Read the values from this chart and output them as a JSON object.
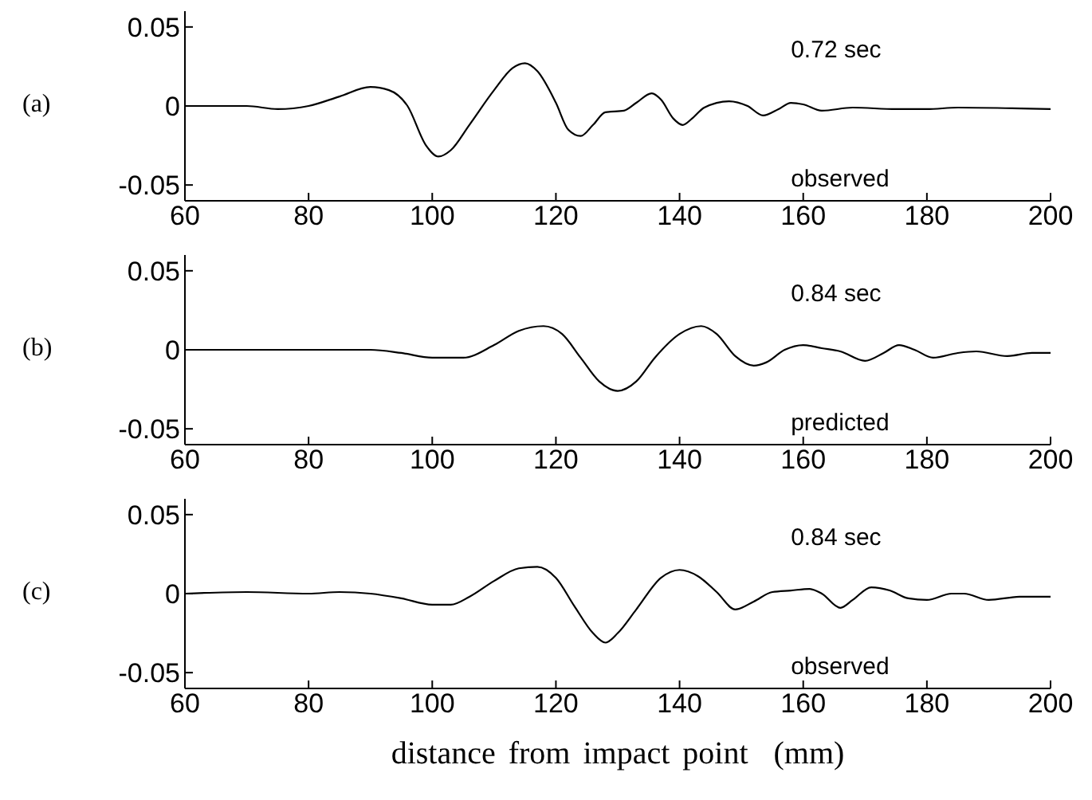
{
  "chart_data": [
    {
      "type": "line",
      "annotations": [
        "(a)",
        "0.72 sec",
        "observed"
      ],
      "x": [
        60,
        70,
        75,
        80,
        85,
        90,
        93,
        96,
        99,
        101,
        103,
        106,
        110,
        113,
        115,
        117,
        120,
        122,
        124,
        126,
        128,
        131,
        133,
        135.5,
        137,
        139,
        140.5,
        142,
        144,
        148,
        151,
        153.5,
        156,
        158,
        160,
        163,
        168,
        175,
        180,
        185,
        200
      ],
      "series": [
        {
          "color": "#000000",
          "values": [
            0,
            0,
            -0.002,
            0,
            0.006,
            0.012,
            0.01,
            0,
            -0.025,
            -0.032,
            -0.028,
            -0.012,
            0.01,
            0.024,
            0.027,
            0.022,
            0.002,
            -0.015,
            -0.019,
            -0.012,
            -0.004,
            -0.003,
            0.002,
            0.008,
            0.004,
            -0.008,
            -0.012,
            -0.008,
            -0.001,
            0.003,
            0,
            -0.006,
            -0.002,
            0.002,
            0.001,
            -0.003,
            -0.001,
            -0.002,
            -0.002,
            -0.001,
            -0.002
          ]
        }
      ],
      "xlim": [
        60,
        200
      ],
      "xticks": [
        60,
        80,
        100,
        120,
        140,
        160,
        180,
        200
      ],
      "ylim": [
        -0.06,
        0.06
      ],
      "yticks": [
        -0.05,
        0,
        0.05
      ],
      "grid": false,
      "legend": false,
      "marker": "none",
      "line_style": "solid"
    },
    {
      "type": "line",
      "annotations": [
        "(b)",
        "0.84 sec",
        "predicted"
      ],
      "x": [
        60,
        90,
        95,
        100,
        105,
        110,
        114,
        118,
        121,
        124,
        127,
        130,
        133,
        136,
        140,
        143.5,
        146,
        149,
        152,
        154,
        157,
        160,
        163,
        166,
        170,
        173,
        175.5,
        178,
        181,
        185,
        188,
        193,
        197,
        200
      ],
      "series": [
        {
          "color": "#000000",
          "values": [
            0,
            0,
            -0.002,
            -0.005,
            -0.005,
            0.003,
            0.012,
            0.015,
            0.01,
            -0.005,
            -0.02,
            -0.026,
            -0.02,
            -0.005,
            0.01,
            0.015,
            0.01,
            -0.004,
            -0.01,
            -0.008,
            0,
            0.003,
            0.001,
            -0.001,
            -0.007,
            -0.002,
            0.003,
            0,
            -0.005,
            -0.002,
            -0.001,
            -0.004,
            -0.002,
            -0.002
          ]
        }
      ],
      "xlim": [
        60,
        200
      ],
      "xticks": [
        60,
        80,
        100,
        120,
        140,
        160,
        180,
        200
      ],
      "ylim": [
        -0.06,
        0.06
      ],
      "yticks": [
        -0.05,
        0,
        0.05
      ],
      "grid": false,
      "legend": false,
      "marker": "none",
      "line_style": "solid"
    },
    {
      "type": "line",
      "xlabel": "distance from impact point  (mm)",
      "annotations": [
        "(c)",
        "0.84 sec",
        "observed"
      ],
      "x": [
        60,
        70,
        80,
        85,
        90,
        95,
        100,
        103,
        106,
        110,
        114,
        117,
        120,
        123,
        126,
        128,
        130,
        133,
        137,
        140,
        143,
        146,
        149,
        152,
        155,
        158,
        161,
        163,
        166,
        168,
        171,
        174,
        177,
        180,
        184,
        186,
        190,
        195,
        200
      ],
      "series": [
        {
          "color": "#000000",
          "values": [
            0,
            0.001,
            0,
            0.001,
            0,
            -0.003,
            -0.007,
            -0.007,
            -0.002,
            0.008,
            0.016,
            0.017,
            0.01,
            -0.008,
            -0.025,
            -0.031,
            -0.025,
            -0.01,
            0.01,
            0.015,
            0.011,
            0.001,
            -0.01,
            -0.005,
            0.001,
            0.002,
            0.003,
            0,
            -0.009,
            -0.004,
            0.004,
            0.002,
            -0.003,
            -0.004,
            0,
            0,
            -0.004,
            -0.002,
            -0.002
          ]
        }
      ],
      "xlim": [
        60,
        200
      ],
      "xticks": [
        60,
        80,
        100,
        120,
        140,
        160,
        180,
        200
      ],
      "ylim": [
        -0.06,
        0.06
      ],
      "yticks": [
        -0.05,
        0,
        0.05
      ],
      "grid": false,
      "legend": false,
      "marker": "none",
      "line_style": "solid"
    }
  ]
}
